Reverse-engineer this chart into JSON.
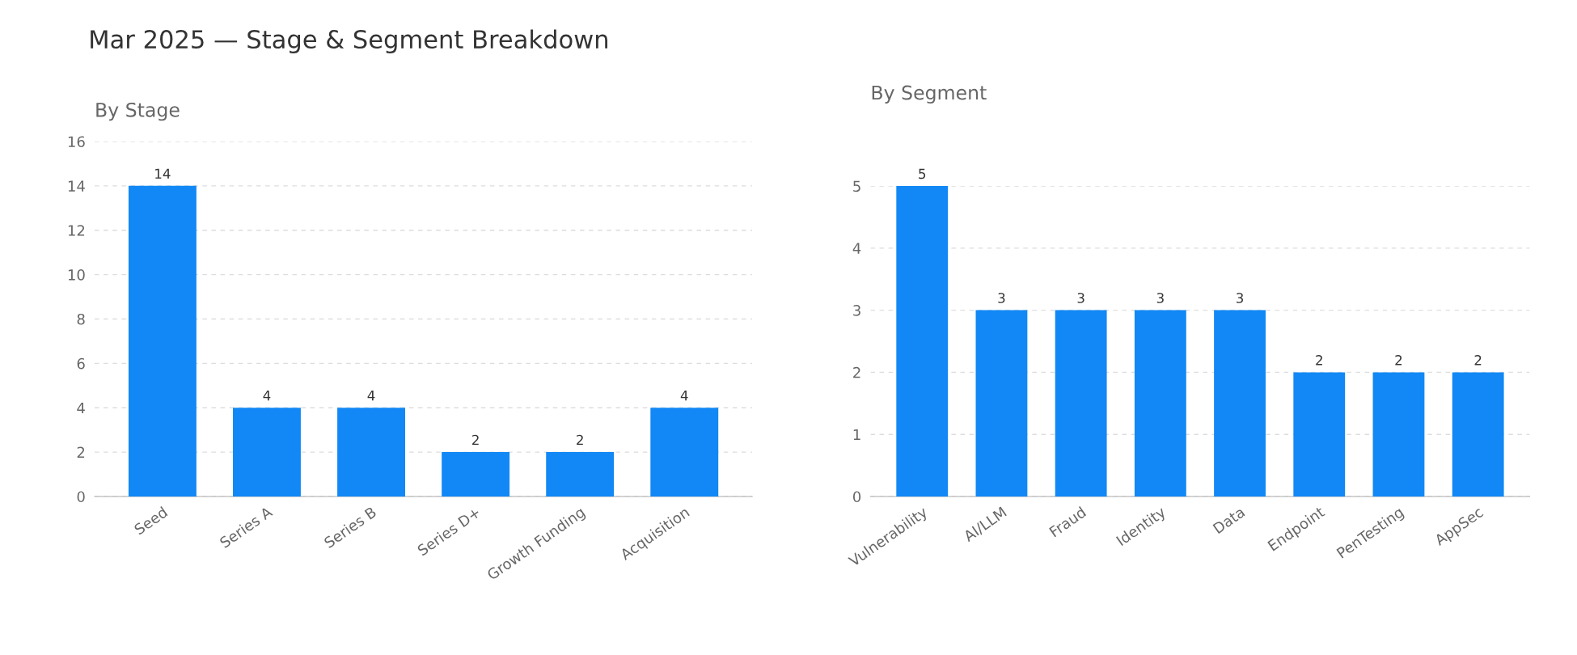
{
  "chart_data": [
    {
      "type": "bar",
      "title": "Mar 2025 — Stage & Segment Breakdown",
      "subtitle": "By Stage",
      "categories": [
        "Seed",
        "Series A",
        "Series B",
        "Series D+",
        "Growth Funding",
        "Acquisition"
      ],
      "values": [
        14,
        4,
        4,
        2,
        2,
        4
      ],
      "color": "#1188f5",
      "ylim": [
        0,
        16
      ],
      "yticks": [
        0,
        2,
        4,
        6,
        8,
        10,
        12,
        14,
        16
      ],
      "grid": "y",
      "data_labels": true
    },
    {
      "type": "bar",
      "subtitle": "By Segment",
      "categories": [
        "Vulnerability",
        "AI/LLM",
        "Fraud",
        "Identity",
        "Data",
        "Endpoint",
        "PenTesting",
        "AppSec"
      ],
      "values": [
        5,
        3,
        3,
        3,
        3,
        2,
        2,
        2
      ],
      "color": "#1188f5",
      "ylim": [
        0,
        5
      ],
      "yticks": [
        0,
        1,
        2,
        3,
        4,
        5
      ],
      "grid": "y",
      "data_labels": true
    }
  ]
}
